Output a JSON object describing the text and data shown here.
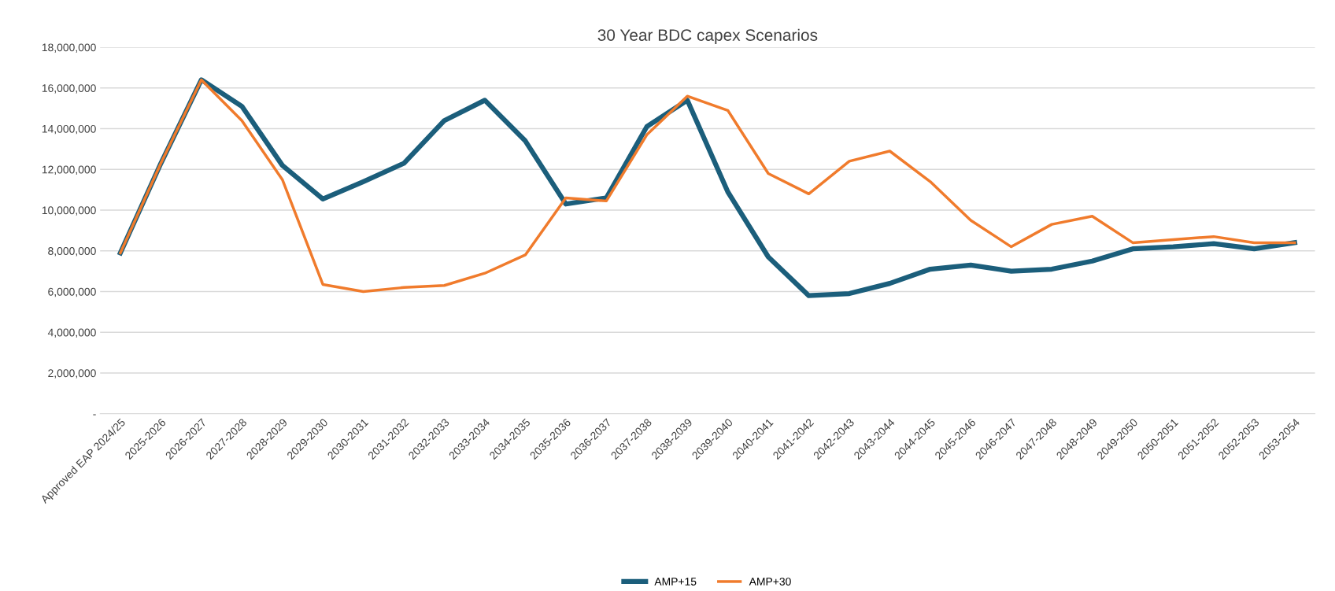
{
  "chart_data": {
    "type": "line",
    "title": "30 Year BDC capex Scenarios",
    "categories": [
      "Approved EAP 2024/25",
      "2025-2026",
      "2026-2027",
      "2027-2028",
      "2028-2029",
      "2029-2030",
      "2030-2031",
      "2031-2032",
      "2032-2033",
      "2033-2034",
      "2034-2035",
      "2035-2036",
      "2036-2037",
      "2037-2038",
      "2038-2039",
      "2039-2040",
      "2040-2041",
      "2041-2042",
      "2042-2043",
      "2043-2044",
      "2044-2045",
      "2045-2046",
      "2046-2047",
      "2047-2048",
      "2048-2049",
      "2049-2050",
      "2050-2051",
      "2051-2052",
      "2052-2053",
      "2053-2054"
    ],
    "series": [
      {
        "name": "AMP+15",
        "color": "#1b5e7b",
        "values": [
          7900000,
          12300000,
          16400000,
          15100000,
          12200000,
          10550000,
          11400000,
          12300000,
          14400000,
          15400000,
          13400000,
          10300000,
          10600000,
          14100000,
          15400000,
          10900000,
          7700000,
          5800000,
          5900000,
          6400000,
          7100000,
          7300000,
          7000000,
          7100000,
          7500000,
          8100000,
          8200000,
          8350000,
          8100000,
          8400000
        ]
      },
      {
        "name": "AMP+30",
        "color": "#f07b2c",
        "values": [
          7900000,
          12300000,
          16400000,
          14400000,
          11500000,
          6350000,
          6000000,
          6200000,
          6300000,
          6900000,
          7800000,
          10600000,
          10450000,
          13700000,
          15600000,
          14900000,
          11800000,
          10800000,
          12400000,
          12900000,
          11400000,
          9500000,
          8200000,
          9300000,
          9700000,
          8400000,
          8550000,
          8700000,
          8400000,
          8400000
        ]
      }
    ],
    "ylim": [
      0,
      18000000
    ],
    "yticks": [
      {
        "value": 0,
        "label": "-"
      },
      {
        "value": 2000000,
        "label": "2,000,000"
      },
      {
        "value": 4000000,
        "label": "4,000,000"
      },
      {
        "value": 6000000,
        "label": "6,000,000"
      },
      {
        "value": 8000000,
        "label": "8,000,000"
      },
      {
        "value": 10000000,
        "label": "10,000,000"
      },
      {
        "value": 12000000,
        "label": "12,000,000"
      },
      {
        "value": 14000000,
        "label": "14,000,000"
      },
      {
        "value": 16000000,
        "label": "16,000,000"
      },
      {
        "value": 18000000,
        "label": "18,000,000"
      }
    ],
    "grid": "y",
    "legend": "bottom",
    "marker": "none",
    "line_style": "solid"
  }
}
